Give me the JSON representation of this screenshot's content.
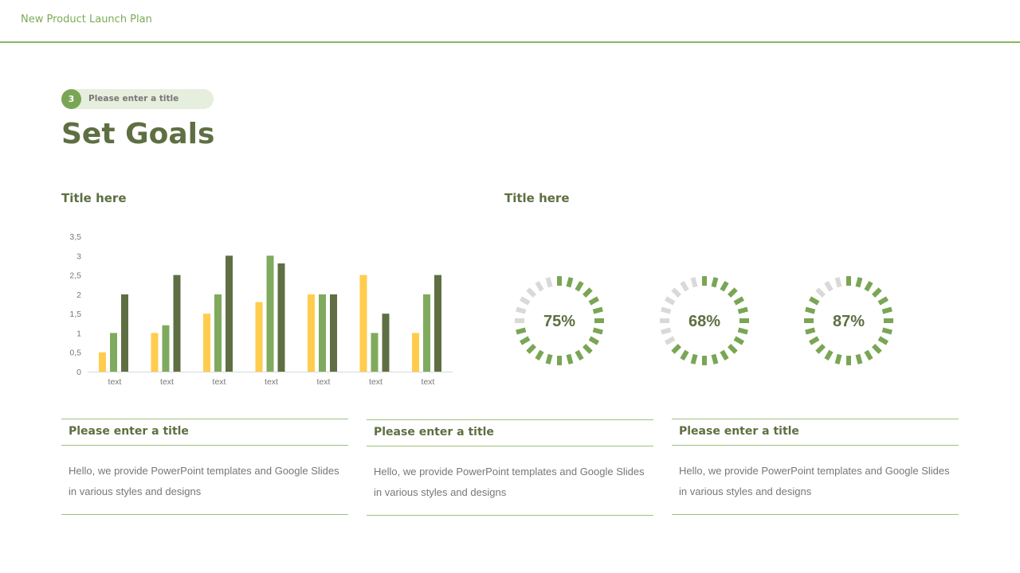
{
  "header": {
    "title": "New Product Launch Plan"
  },
  "section": {
    "number": "3",
    "label": "Please enter a title"
  },
  "page_title": "Set Goals",
  "left_panel": {
    "title": "Title here"
  },
  "right_panel": {
    "title": "Title here"
  },
  "colors": {
    "accent": "#79a655",
    "dark": "#5e6f42",
    "yellow": "#ffcc4d",
    "gray": "#d9d9d9"
  },
  "chart_data": {
    "type": "bar",
    "categories": [
      "text",
      "text",
      "text",
      "text",
      "text",
      "text",
      "text"
    ],
    "series": [
      {
        "values": [
          0.5,
          1,
          1.5,
          1.8,
          2,
          2.5,
          1
        ],
        "color": "#ffcc4d"
      },
      {
        "values": [
          1,
          1.2,
          2,
          3,
          2,
          1,
          2
        ],
        "color": "#80aa5e"
      },
      {
        "values": [
          2,
          2.5,
          3,
          2.8,
          2,
          1.5,
          2.5
        ],
        "color": "#5f6f43"
      }
    ],
    "ylim": [
      0,
      3.5
    ],
    "yticks": [
      "0",
      "0,5",
      "1",
      "1,5",
      "2",
      "2,5",
      "3",
      "3,5"
    ],
    "grid": false,
    "legend": "none"
  },
  "gauges": [
    {
      "label": "75%",
      "value": 75
    },
    {
      "label": "68%",
      "value": 68
    },
    {
      "label": "87%",
      "value": 87
    }
  ],
  "cards": [
    {
      "title": "Please enter a title",
      "body": "Hello, we provide PowerPoint templates and Google Slides in various styles and designs"
    },
    {
      "title": "Please enter a title",
      "body": "Hello, we provide PowerPoint templates and Google Slides in various styles and designs"
    },
    {
      "title": "Please enter a title",
      "body": "Hello, we provide PowerPoint templates and Google Slides in various styles and designs"
    }
  ]
}
